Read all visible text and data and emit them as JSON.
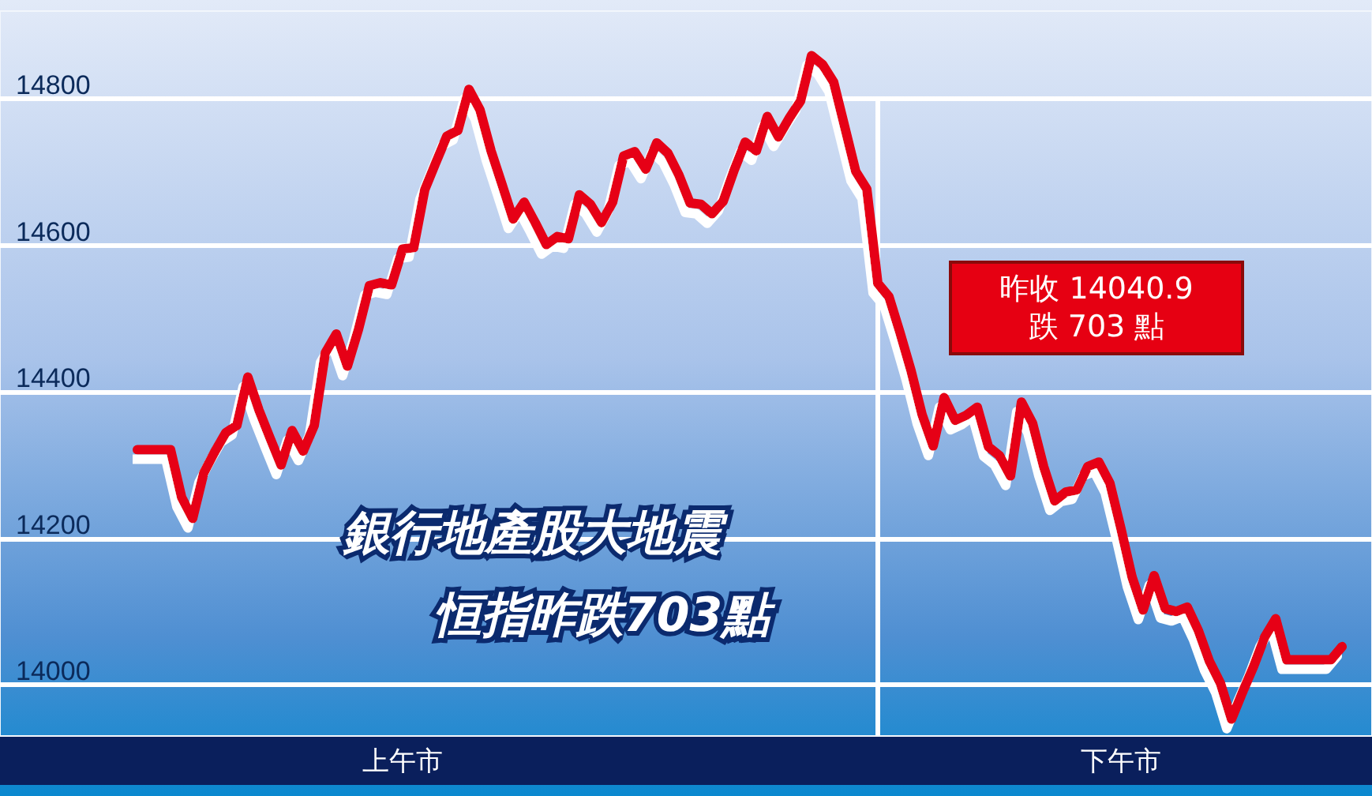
{
  "chart_data": {
    "type": "line",
    "title": "銀行地產股大地震",
    "subtitle": "恒指昨跌703點",
    "categories": [
      null,
      null,
      null,
      null,
      null,
      null,
      null,
      null,
      null,
      null,
      null,
      null,
      null,
      null,
      null,
      null,
      null,
      null,
      null,
      null,
      null,
      null,
      null,
      null,
      "上午市",
      null,
      null,
      null,
      null,
      null,
      null,
      null,
      null,
      null,
      null,
      null,
      null,
      null,
      null,
      null,
      null,
      null,
      null,
      null,
      null,
      null,
      null,
      null,
      null,
      null,
      null,
      null,
      null,
      null,
      null,
      null,
      null,
      null,
      null,
      null,
      null,
      null,
      null,
      null,
      null,
      null,
      null,
      null,
      null,
      null,
      null,
      null,
      null,
      null,
      null,
      null,
      null,
      null,
      null,
      null,
      null,
      null,
      null,
      null,
      null,
      null,
      null,
      null,
      null,
      "下午市",
      null,
      null,
      null,
      null,
      null,
      null,
      null,
      null,
      null,
      null,
      null,
      null,
      null,
      null,
      null,
      null,
      null,
      null,
      null,
      null
    ],
    "values": [
      14321,
      14321,
      14321,
      14321,
      14256,
      14227,
      14289,
      14318,
      14344,
      14354,
      14420,
      14375,
      14337,
      14300,
      14347,
      14319,
      14354,
      14453,
      14479,
      14435,
      14485,
      14545,
      14549,
      14546,
      14595,
      14597,
      14676,
      14713,
      14749,
      14757,
      14813,
      14785,
      14729,
      14683,
      14636,
      14659,
      14631,
      14601,
      14612,
      14609,
      14669,
      14656,
      14631,
      14659,
      14722,
      14728,
      14704,
      14740,
      14726,
      14696,
      14658,
      14656,
      14643,
      14660,
      14703,
      14741,
      14729,
      14776,
      14748,
      14774,
      14797,
      14859,
      14847,
      14823,
      14762,
      14701,
      14677,
      14548,
      14530,
      14481,
      14429,
      14369,
      14326,
      14392,
      14361,
      14368,
      14379,
      14325,
      14313,
      14285,
      14386,
      14357,
      14298,
      14251,
      14263,
      14266,
      14298,
      14304,
      14275,
      14213,
      14147,
      14102,
      14149,
      14104,
      14100,
      14106,
      14074,
      14032,
      14002,
      13953,
      13990,
      14025,
      14065,
      14090,
      14034,
      14034,
      14034,
      14034,
      14034,
      14052
    ],
    "color": "#e60012",
    "ylim": [
      13930,
      14920
    ],
    "yticks": [
      14000,
      14200,
      14400,
      14600,
      14800
    ],
    "grid": "y",
    "marker": "none",
    "annotations": [
      "昨收 14040.9\n跌 703 點"
    ]
  }
}
